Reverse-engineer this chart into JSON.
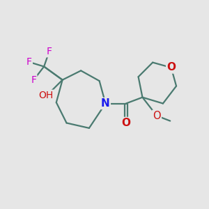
{
  "background_color": "#e6e6e6",
  "bond_color": "#4a7a70",
  "bond_width": 1.6,
  "atom_colors": {
    "N": "#1a1aee",
    "O": "#cc1111",
    "F": "#cc00cc",
    "C": "#000000",
    "H": "#666666"
  },
  "figsize": [
    3.0,
    3.0
  ],
  "dpi": 100
}
